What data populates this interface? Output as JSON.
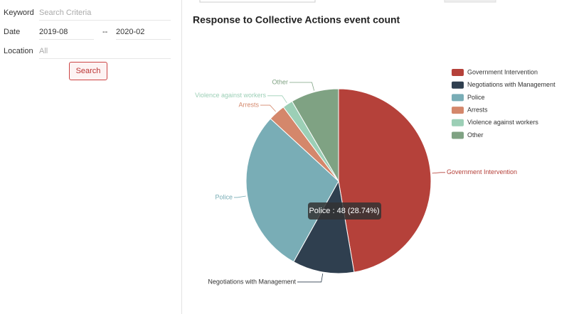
{
  "form": {
    "keyword_label": "Keyword",
    "keyword_placeholder": "Search Criteria",
    "date_label": "Date",
    "date_from": "2019-08",
    "date_sep": "--",
    "date_to": "2020-02",
    "location_label": "Location",
    "location_value": "All",
    "search_button": "Search"
  },
  "chart_data": {
    "type": "pie",
    "title": "Response to Collective Actions event count",
    "categories": [
      "Government Intervention",
      "Negotiations with Management",
      "Police",
      "Arrests",
      "Violence against workers",
      "Other"
    ],
    "values": [
      79,
      18,
      48,
      5,
      3,
      14
    ],
    "colors": [
      "#b5413a",
      "#2f3f4f",
      "#79adb6",
      "#d4876b",
      "#9ccfb6",
      "#7fa283"
    ],
    "legend": "top-right",
    "tooltip": "Police : 48 (28.74%)"
  }
}
